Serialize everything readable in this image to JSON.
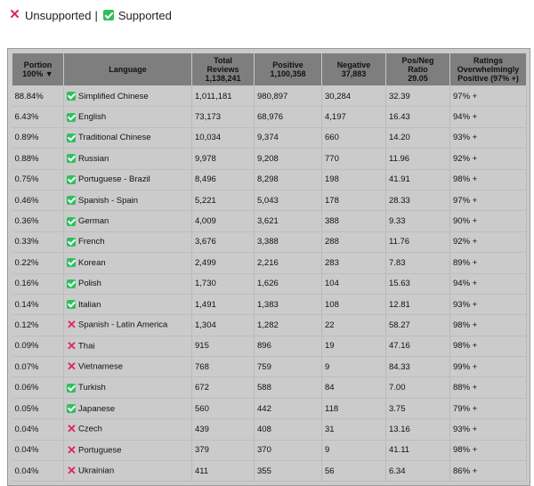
{
  "legend": {
    "unsupported_icon": "x-icon",
    "unsupported_label": "Unsupported",
    "separator": "|",
    "supported_icon": "check-icon",
    "supported_label": "Supported",
    "colors": {
      "unsupported": "#e0245e",
      "supported": "#2fbf5e"
    }
  },
  "table": {
    "headers": {
      "portion": [
        "Portion",
        "100% ▼"
      ],
      "language": [
        "Language"
      ],
      "total": [
        "Total",
        "Reviews",
        "1,138,241"
      ],
      "positive": [
        "Positive",
        "1,100,358"
      ],
      "negative": [
        "Negative",
        "37,883"
      ],
      "ratio": [
        "Pos/Neg",
        "Ratio",
        "29.05"
      ],
      "ratings": [
        "Ratings",
        "Overwhelmingly",
        "Positive (97% +)"
      ]
    },
    "rows": [
      {
        "portion": "88.84%",
        "supported": true,
        "language": "Simplified Chinese",
        "total": "1,011,181",
        "positive": "980,897",
        "negative": "30,284",
        "ratio": "32.39",
        "rating": "97% +"
      },
      {
        "portion": "6.43%",
        "supported": true,
        "language": "English",
        "total": "73,173",
        "positive": "68,976",
        "negative": "4,197",
        "ratio": "16.43",
        "rating": "94% +"
      },
      {
        "portion": "0.89%",
        "supported": true,
        "language": "Traditional Chinese",
        "total": "10,034",
        "positive": "9,374",
        "negative": "660",
        "ratio": "14.20",
        "rating": "93% +"
      },
      {
        "portion": "0.88%",
        "supported": true,
        "language": "Russian",
        "total": "9,978",
        "positive": "9,208",
        "negative": "770",
        "ratio": "11.96",
        "rating": "92% +"
      },
      {
        "portion": "0.75%",
        "supported": true,
        "language": "Portuguese - Brazil",
        "total": "8,496",
        "positive": "8,298",
        "negative": "198",
        "ratio": "41.91",
        "rating": "98% +"
      },
      {
        "portion": "0.46%",
        "supported": true,
        "language": "Spanish - Spain",
        "total": "5,221",
        "positive": "5,043",
        "negative": "178",
        "ratio": "28.33",
        "rating": "97% +"
      },
      {
        "portion": "0.36%",
        "supported": true,
        "language": "German",
        "total": "4,009",
        "positive": "3,621",
        "negative": "388",
        "ratio": "9.33",
        "rating": "90% +"
      },
      {
        "portion": "0.33%",
        "supported": true,
        "language": "French",
        "total": "3,676",
        "positive": "3,388",
        "negative": "288",
        "ratio": "11.76",
        "rating": "92% +"
      },
      {
        "portion": "0.22%",
        "supported": true,
        "language": "Korean",
        "total": "2,499",
        "positive": "2,216",
        "negative": "283",
        "ratio": "7.83",
        "rating": "89% +"
      },
      {
        "portion": "0.16%",
        "supported": true,
        "language": "Polish",
        "total": "1,730",
        "positive": "1,626",
        "negative": "104",
        "ratio": "15.63",
        "rating": "94% +"
      },
      {
        "portion": "0.14%",
        "supported": true,
        "language": "Italian",
        "total": "1,491",
        "positive": "1,383",
        "negative": "108",
        "ratio": "12.81",
        "rating": "93% +"
      },
      {
        "portion": "0.12%",
        "supported": false,
        "language": "Spanish - Latin America",
        "total": "1,304",
        "positive": "1,282",
        "negative": "22",
        "ratio": "58.27",
        "rating": "98% +"
      },
      {
        "portion": "0.09%",
        "supported": false,
        "language": "Thai",
        "total": "915",
        "positive": "896",
        "negative": "19",
        "ratio": "47.16",
        "rating": "98% +"
      },
      {
        "portion": "0.07%",
        "supported": false,
        "language": "Vietnamese",
        "total": "768",
        "positive": "759",
        "negative": "9",
        "ratio": "84.33",
        "rating": "99% +"
      },
      {
        "portion": "0.06%",
        "supported": true,
        "language": "Turkish",
        "total": "672",
        "positive": "588",
        "negative": "84",
        "ratio": "7.00",
        "rating": "88% +"
      },
      {
        "portion": "0.05%",
        "supported": true,
        "language": "Japanese",
        "total": "560",
        "positive": "442",
        "negative": "118",
        "ratio": "3.75",
        "rating": "79% +"
      },
      {
        "portion": "0.04%",
        "supported": false,
        "language": "Czech",
        "total": "439",
        "positive": "408",
        "negative": "31",
        "ratio": "13.16",
        "rating": "93% +"
      },
      {
        "portion": "0.04%",
        "supported": false,
        "language": "Portuguese",
        "total": "379",
        "positive": "370",
        "negative": "9",
        "ratio": "41.11",
        "rating": "98% +"
      },
      {
        "portion": "0.04%",
        "supported": false,
        "language": "Ukrainian",
        "total": "411",
        "positive": "355",
        "negative": "56",
        "ratio": "6.34",
        "rating": "86% +"
      }
    ]
  }
}
